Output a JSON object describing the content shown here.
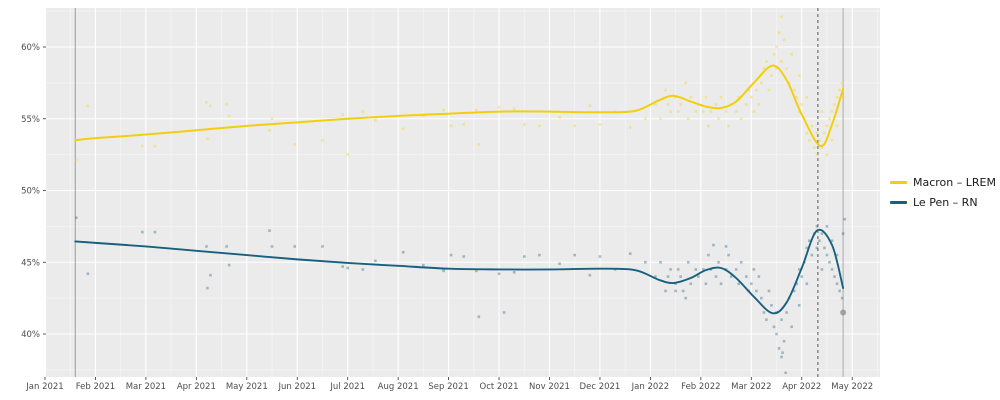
{
  "legend": {
    "items": [
      {
        "label": "Macron – LREM",
        "color": "#f2cf0e"
      },
      {
        "label": "Le Pen – RN",
        "color": "#19607e"
      }
    ]
  },
  "chart_data": {
    "type": "scatter",
    "title": "",
    "xlabel": "",
    "ylabel": "",
    "x_tick_labels": [
      "Jan 2021",
      "Feb 2021",
      "Mar 2021",
      "Apr 2021",
      "May 2021",
      "Jun 2021",
      "Jul 2021",
      "Aug 2021",
      "Sep 2021",
      "Oct 2021",
      "Nov 2021",
      "Dec 2021",
      "Jan 2022",
      "Feb 2022",
      "Mar 2022",
      "Apr 2022",
      "May 2022"
    ],
    "y_tick_labels": [
      "40%",
      "45%",
      "50%",
      "55%",
      "60%"
    ],
    "y_tick_values": [
      40,
      45,
      50,
      55,
      60
    ],
    "ylim": [
      36.9,
      62.75
    ],
    "xlim_months": [
      0.02,
      16.55
    ],
    "grid": {
      "panel_bg": "#ebebeb",
      "major": "#ffffff",
      "minor": "#f5f5f5",
      "y_minor": [
        37.5,
        42.5,
        47.5,
        52.5,
        57.5,
        62.5
      ]
    },
    "vlines": [
      {
        "x_month": 0.6,
        "style": "solid",
        "color": "#9b9b9b",
        "meaning": "series start marker"
      },
      {
        "x_month": 15.32,
        "style": "dashed",
        "color": "#555555",
        "meaning": "first round"
      },
      {
        "x_month": 15.82,
        "style": "solid",
        "color": "#ababab",
        "meaning": "second round"
      }
    ],
    "series": [
      {
        "name": "Macron – LREM",
        "line_color": "#f2cf0e",
        "point_color": "#f5d824",
        "trend": [
          [
            0.6,
            53.5
          ],
          [
            1.0,
            53.65
          ],
          [
            2.0,
            53.9
          ],
          [
            3.0,
            54.2
          ],
          [
            4.0,
            54.5
          ],
          [
            5.0,
            54.75
          ],
          [
            6.0,
            55.0
          ],
          [
            7.0,
            55.2
          ],
          [
            8.0,
            55.35
          ],
          [
            9.0,
            55.5
          ],
          [
            10.0,
            55.5
          ],
          [
            11.0,
            55.45
          ],
          [
            11.7,
            55.55
          ],
          [
            12.15,
            56.25
          ],
          [
            12.45,
            56.6
          ],
          [
            12.8,
            56.2
          ],
          [
            13.1,
            55.85
          ],
          [
            13.4,
            55.75
          ],
          [
            13.7,
            56.2
          ],
          [
            14.05,
            57.5
          ],
          [
            14.42,
            58.7
          ],
          [
            14.7,
            57.7
          ],
          [
            15.0,
            55.3
          ],
          [
            15.37,
            53.1
          ],
          [
            15.6,
            54.6
          ],
          [
            15.82,
            57.1
          ]
        ],
        "points": [
          [
            0.62,
            52.1
          ],
          [
            0.85,
            55.9
          ],
          [
            1.93,
            53.1
          ],
          [
            2.18,
            53.1
          ],
          [
            3.2,
            56.15
          ],
          [
            3.28,
            55.9
          ],
          [
            3.22,
            53.6
          ],
          [
            3.6,
            56.0
          ],
          [
            3.65,
            55.2
          ],
          [
            4.45,
            54.2
          ],
          [
            4.5,
            55.0
          ],
          [
            4.95,
            53.2
          ],
          [
            5.5,
            53.5
          ],
          [
            5.9,
            55.3
          ],
          [
            6.0,
            52.5
          ],
          [
            6.3,
            55.5
          ],
          [
            6.55,
            54.9
          ],
          [
            7.1,
            54.3
          ],
          [
            7.5,
            55.2
          ],
          [
            7.9,
            55.6
          ],
          [
            8.05,
            54.5
          ],
          [
            8.3,
            54.6
          ],
          [
            8.55,
            55.6
          ],
          [
            8.6,
            53.2
          ],
          [
            9.0,
            55.8
          ],
          [
            9.3,
            55.7
          ],
          [
            9.5,
            54.6
          ],
          [
            9.8,
            54.5
          ],
          [
            10.2,
            55.1
          ],
          [
            10.5,
            54.5
          ],
          [
            10.8,
            55.9
          ],
          [
            11.0,
            54.6
          ],
          [
            11.3,
            55.5
          ],
          [
            11.6,
            54.4
          ],
          [
            11.9,
            55.0
          ],
          [
            12.1,
            56.0
          ],
          [
            12.2,
            55.0
          ],
          [
            12.3,
            57.0
          ],
          [
            12.35,
            56.0
          ],
          [
            12.4,
            55.5
          ],
          [
            12.5,
            56.5
          ],
          [
            12.55,
            55.5
          ],
          [
            12.6,
            56.0
          ],
          [
            12.7,
            57.5
          ],
          [
            12.75,
            55.0
          ],
          [
            12.8,
            56.5
          ],
          [
            12.9,
            55.5
          ],
          [
            12.95,
            56.0
          ],
          [
            13.05,
            55.5
          ],
          [
            13.1,
            56.5
          ],
          [
            13.15,
            54.5
          ],
          [
            13.2,
            55.5
          ],
          [
            13.3,
            56.0
          ],
          [
            13.35,
            55.0
          ],
          [
            13.4,
            56.5
          ],
          [
            13.5,
            55.5
          ],
          [
            13.55,
            54.5
          ],
          [
            13.6,
            56.0
          ],
          [
            13.7,
            55.5
          ],
          [
            13.75,
            56.5
          ],
          [
            13.8,
            55.0
          ],
          [
            13.9,
            56.0
          ],
          [
            13.95,
            57.0
          ],
          [
            14.0,
            56.5
          ],
          [
            14.05,
            55.5
          ],
          [
            14.1,
            57.0
          ],
          [
            14.15,
            56.0
          ],
          [
            14.2,
            57.5
          ],
          [
            14.25,
            58.5
          ],
          [
            14.3,
            59.0
          ],
          [
            14.35,
            57.0
          ],
          [
            14.4,
            58.0
          ],
          [
            14.45,
            59.5
          ],
          [
            14.5,
            60.0
          ],
          [
            14.5,
            58.5
          ],
          [
            14.55,
            61.0
          ],
          [
            14.6,
            62.1
          ],
          [
            14.6,
            59.0
          ],
          [
            14.65,
            60.5
          ],
          [
            14.7,
            58.5
          ],
          [
            14.75,
            57.5
          ],
          [
            14.8,
            59.5
          ],
          [
            14.85,
            57.0
          ],
          [
            14.9,
            56.5
          ],
          [
            14.95,
            58.0
          ],
          [
            14.95,
            55.5
          ],
          [
            15.0,
            56.0
          ],
          [
            15.05,
            55.0
          ],
          [
            15.1,
            54.0
          ],
          [
            15.1,
            56.5
          ],
          [
            15.15,
            53.5
          ],
          [
            15.2,
            54.5
          ],
          [
            15.25,
            53.0
          ],
          [
            15.3,
            52.5
          ],
          [
            15.3,
            54.0
          ],
          [
            15.35,
            53.5
          ],
          [
            15.4,
            53.0
          ],
          [
            15.4,
            55.5
          ],
          [
            15.45,
            54.0
          ],
          [
            15.5,
            54.5
          ],
          [
            15.5,
            52.5
          ],
          [
            15.55,
            55.0
          ],
          [
            15.6,
            55.5
          ],
          [
            15.6,
            53.5
          ],
          [
            15.65,
            56.0
          ],
          [
            15.7,
            56.5
          ],
          [
            15.7,
            54.5
          ],
          [
            15.75,
            57.0
          ],
          [
            15.8,
            57.5
          ],
          [
            15.82,
            56.5
          ]
        ]
      },
      {
        "name": "Le Pen – RN",
        "line_color": "#19607e",
        "point_color": "#3d7490",
        "trend": [
          [
            0.6,
            46.45
          ],
          [
            1.0,
            46.35
          ],
          [
            2.0,
            46.1
          ],
          [
            3.0,
            45.8
          ],
          [
            4.0,
            45.5
          ],
          [
            5.0,
            45.2
          ],
          [
            6.0,
            44.95
          ],
          [
            7.0,
            44.75
          ],
          [
            8.0,
            44.55
          ],
          [
            9.0,
            44.5
          ],
          [
            10.0,
            44.5
          ],
          [
            11.0,
            44.55
          ],
          [
            11.7,
            44.45
          ],
          [
            12.15,
            43.8
          ],
          [
            12.45,
            43.55
          ],
          [
            12.8,
            43.9
          ],
          [
            13.1,
            44.45
          ],
          [
            13.4,
            44.6
          ],
          [
            13.7,
            43.9
          ],
          [
            14.05,
            42.6
          ],
          [
            14.42,
            41.45
          ],
          [
            14.7,
            42.2
          ],
          [
            15.0,
            44.6
          ],
          [
            15.3,
            47.2
          ],
          [
            15.6,
            46.2
          ],
          [
            15.82,
            43.2
          ]
        ],
        "points": [
          [
            0.62,
            48.1
          ],
          [
            0.85,
            44.2
          ],
          [
            1.93,
            47.1
          ],
          [
            2.18,
            47.1
          ],
          [
            3.2,
            46.1
          ],
          [
            3.28,
            44.1
          ],
          [
            3.22,
            43.2
          ],
          [
            3.6,
            46.1
          ],
          [
            3.65,
            44.8
          ],
          [
            4.45,
            47.2
          ],
          [
            4.5,
            46.1
          ],
          [
            4.95,
            46.1
          ],
          [
            5.5,
            46.1
          ],
          [
            5.9,
            44.7
          ],
          [
            6.0,
            44.6
          ],
          [
            6.3,
            44.5
          ],
          [
            6.55,
            45.1
          ],
          [
            7.1,
            45.7
          ],
          [
            7.5,
            44.8
          ],
          [
            7.9,
            44.4
          ],
          [
            8.05,
            45.5
          ],
          [
            8.3,
            45.4
          ],
          [
            8.55,
            44.4
          ],
          [
            8.6,
            41.2
          ],
          [
            9.0,
            44.2
          ],
          [
            9.1,
            41.5
          ],
          [
            9.3,
            44.3
          ],
          [
            9.5,
            45.4
          ],
          [
            9.8,
            45.5
          ],
          [
            10.2,
            44.9
          ],
          [
            10.5,
            45.5
          ],
          [
            10.8,
            44.1
          ],
          [
            11.0,
            45.4
          ],
          [
            11.3,
            44.5
          ],
          [
            11.6,
            45.6
          ],
          [
            11.9,
            45.0
          ],
          [
            12.1,
            44.0
          ],
          [
            12.2,
            45.0
          ],
          [
            12.3,
            43.0
          ],
          [
            12.35,
            44.0
          ],
          [
            12.4,
            44.5
          ],
          [
            12.5,
            43.5
          ],
          [
            12.55,
            44.5
          ],
          [
            12.6,
            44.0
          ],
          [
            12.7,
            42.5
          ],
          [
            12.75,
            45.0
          ],
          [
            12.8,
            43.5
          ],
          [
            12.9,
            44.5
          ],
          [
            12.95,
            44.0
          ],
          [
            12.5,
            43.0
          ],
          [
            12.65,
            43.0
          ],
          [
            13.05,
            44.5
          ],
          [
            13.1,
            43.5
          ],
          [
            13.15,
            45.5
          ],
          [
            13.2,
            44.5
          ],
          [
            13.25,
            46.2
          ],
          [
            13.3,
            44.0
          ],
          [
            13.35,
            45.0
          ],
          [
            13.4,
            43.5
          ],
          [
            13.5,
            44.5
          ],
          [
            13.5,
            46.1
          ],
          [
            13.55,
            45.5
          ],
          [
            13.6,
            44.0
          ],
          [
            13.7,
            44.5
          ],
          [
            13.75,
            43.5
          ],
          [
            13.8,
            45.0
          ],
          [
            13.9,
            44.0
          ],
          [
            13.95,
            43.0
          ],
          [
            14.0,
            43.5
          ],
          [
            14.05,
            44.5
          ],
          [
            14.1,
            43.0
          ],
          [
            14.15,
            44.0
          ],
          [
            14.2,
            42.5
          ],
          [
            14.25,
            41.5
          ],
          [
            14.3,
            41.0
          ],
          [
            14.35,
            43.0
          ],
          [
            14.4,
            42.0
          ],
          [
            14.45,
            40.5
          ],
          [
            14.5,
            40.0
          ],
          [
            14.5,
            41.5
          ],
          [
            14.55,
            39.0
          ],
          [
            14.6,
            38.4
          ],
          [
            14.62,
            38.7
          ],
          [
            14.6,
            41.0
          ],
          [
            14.65,
            39.5
          ],
          [
            14.7,
            41.5
          ],
          [
            14.75,
            42.5
          ],
          [
            14.8,
            40.5
          ],
          [
            14.85,
            43.0
          ],
          [
            14.9,
            43.5
          ],
          [
            14.95,
            42.0
          ],
          [
            14.95,
            44.5
          ],
          [
            15.0,
            44.0
          ],
          [
            15.05,
            45.0
          ],
          [
            15.1,
            46.0
          ],
          [
            15.1,
            43.5
          ],
          [
            15.15,
            46.5
          ],
          [
            15.2,
            45.5
          ],
          [
            15.25,
            47.0
          ],
          [
            15.3,
            47.5
          ],
          [
            15.3,
            46.0
          ],
          [
            15.35,
            46.5
          ],
          [
            15.4,
            47.0
          ],
          [
            15.4,
            44.5
          ],
          [
            15.45,
            46.0
          ],
          [
            15.5,
            45.5
          ],
          [
            15.5,
            47.5
          ],
          [
            15.55,
            45.0
          ],
          [
            15.6,
            44.5
          ],
          [
            15.6,
            46.5
          ],
          [
            15.65,
            44.0
          ],
          [
            15.7,
            43.5
          ],
          [
            15.7,
            45.5
          ],
          [
            15.75,
            43.0
          ],
          [
            15.8,
            42.5
          ],
          [
            15.82,
            47.0
          ],
          [
            15.85,
            48.0
          ]
        ]
      }
    ],
    "extra_points": [
      {
        "x_month": 15.82,
        "value": 41.5,
        "color": "#8c8c8c",
        "size": "large"
      },
      {
        "x_month": 14.68,
        "value": 37.3,
        "color": "#9a9a9a",
        "size": "small"
      }
    ],
    "legend_position": "right"
  }
}
